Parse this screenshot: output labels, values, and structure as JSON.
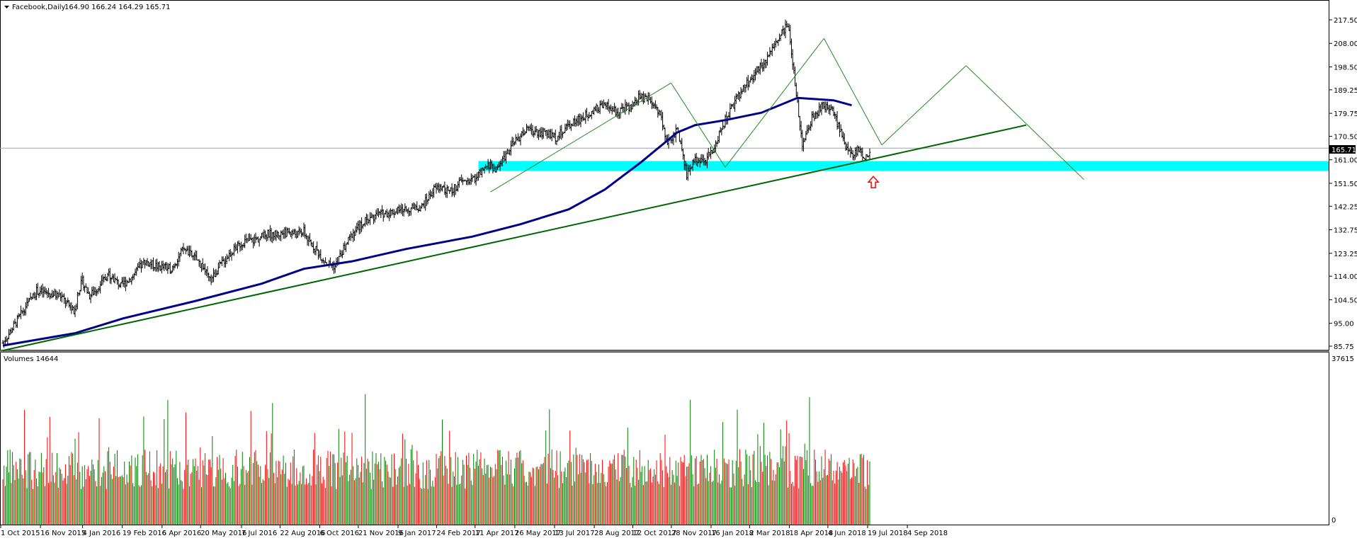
{
  "window": {
    "title": "Facebook,Daily",
    "ohlc": "164.90 166.24 164.29 165.71",
    "volume_label": "Volumes 14644"
  },
  "colors": {
    "price_bar": "#000000",
    "ma": "#00008b",
    "trendline": "#006400",
    "pattern": "#228b22",
    "support_zone": "#00ffff",
    "volume_up": "#008000",
    "volume_down": "#ff0000",
    "current_price_bg": "#000000",
    "arrow": "#ff0000"
  },
  "chart_data": {
    "type": "ohlc",
    "symbol": "Facebook",
    "timeframe": "Daily",
    "ylim": [
      85.75,
      221.0
    ],
    "y_ticks": [
      "217.50",
      "208.00",
      "198.50",
      "189.25",
      "179.75",
      "170.50",
      "161.00",
      "151.50",
      "142.25",
      "132.75",
      "123.25",
      "114.00",
      "104.50",
      "95.00",
      "85.75"
    ],
    "current_price": "165.71",
    "x_ticks": [
      "1 Oct 2015",
      "16 Nov 2015",
      "4 Jan 2016",
      "19 Feb 2016",
      "6 Apr 2016",
      "20 May 2016",
      "7 Jul 2016",
      "22 Aug 2016",
      "6 Oct 2016",
      "21 Nov 2016",
      "9 Jan 2017",
      "24 Feb 2017",
      "11 Apr 2017",
      "26 May 2017",
      "13 Jul 2017",
      "28 Aug 2017",
      "12 Oct 2017",
      "28 Nov 2017",
      "16 Jan 2018",
      "2 Mar 2018",
      "18 Apr 2018",
      "4 Jun 2018",
      "19 Jul 2018",
      "4 Sep 2018"
    ],
    "price_path": [
      [
        0,
        87
      ],
      [
        8,
        93
      ],
      [
        18,
        101
      ],
      [
        28,
        108
      ],
      [
        38,
        107
      ],
      [
        48,
        106
      ],
      [
        55,
        102
      ],
      [
        60,
        99
      ],
      [
        62,
        107
      ],
      [
        66,
        112
      ],
      [
        72,
        106
      ],
      [
        78,
        109
      ],
      [
        88,
        115
      ],
      [
        98,
        110
      ],
      [
        108,
        114
      ],
      [
        118,
        120
      ],
      [
        128,
        118
      ],
      [
        140,
        117
      ],
      [
        150,
        125
      ],
      [
        160,
        121
      ],
      [
        166,
        118
      ],
      [
        172,
        112
      ],
      [
        180,
        118
      ],
      [
        190,
        124
      ],
      [
        200,
        128
      ],
      [
        212,
        129
      ],
      [
        220,
        131
      ],
      [
        230,
        131
      ],
      [
        238,
        132
      ],
      [
        244,
        131
      ],
      [
        250,
        132
      ],
      [
        254,
        128
      ],
      [
        260,
        125
      ],
      [
        264,
        122
      ],
      [
        270,
        119
      ],
      [
        276,
        118
      ],
      [
        282,
        124
      ],
      [
        290,
        131
      ],
      [
        300,
        136
      ],
      [
        312,
        139
      ],
      [
        324,
        140
      ],
      [
        336,
        141
      ],
      [
        348,
        142
      ],
      [
        358,
        149
      ],
      [
        364,
        150
      ],
      [
        372,
        148
      ],
      [
        380,
        152
      ],
      [
        390,
        153
      ],
      [
        398,
        156
      ],
      [
        404,
        159
      ],
      [
        410,
        157
      ],
      [
        420,
        165
      ],
      [
        434,
        173
      ],
      [
        448,
        172
      ],
      [
        460,
        170
      ],
      [
        472,
        176
      ],
      [
        482,
        178
      ],
      [
        490,
        181
      ],
      [
        500,
        183
      ],
      [
        510,
        180
      ],
      [
        516,
        182
      ],
      [
        522,
        182
      ],
      [
        528,
        186
      ],
      [
        536,
        186
      ],
      [
        546,
        180
      ],
      [
        552,
        168
      ],
      [
        560,
        173
      ],
      [
        568,
        155
      ],
      [
        575,
        162
      ],
      [
        582,
        160
      ],
      [
        590,
        165
      ],
      [
        600,
        177
      ],
      [
        610,
        186
      ],
      [
        620,
        193
      ],
      [
        632,
        200
      ],
      [
        644,
        210
      ],
      [
        652,
        216
      ],
      [
        664,
        167
      ],
      [
        672,
        178
      ],
      [
        682,
        183
      ],
      [
        690,
        180
      ],
      [
        696,
        172
      ],
      [
        700,
        166
      ],
      [
        706,
        163
      ],
      [
        710,
        165
      ],
      [
        716,
        161
      ],
      [
        720,
        165
      ]
    ],
    "ma_path": [
      [
        0,
        86
      ],
      [
        60,
        91
      ],
      [
        100,
        97
      ],
      [
        160,
        104
      ],
      [
        215,
        111
      ],
      [
        250,
        117
      ],
      [
        290,
        120
      ],
      [
        335,
        125
      ],
      [
        390,
        130
      ],
      [
        430,
        135
      ],
      [
        470,
        141
      ],
      [
        500,
        149
      ],
      [
        530,
        160
      ],
      [
        560,
        172
      ],
      [
        575,
        175
      ],
      [
        600,
        177
      ],
      [
        630,
        180
      ],
      [
        660,
        186
      ],
      [
        690,
        185
      ],
      [
        705,
        183
      ]
    ],
    "trendline": [
      [
        0,
        84
      ],
      [
        850,
        175
      ]
    ],
    "support_zone": [
      156.5,
      160.5
    ],
    "zone_start_x": 395,
    "pattern_lines": [
      [
        [
          405,
          148
        ],
        [
          555,
          192
        ]
      ],
      [
        [
          555,
          192
        ],
        [
          600,
          158
        ]
      ],
      [
        [
          600,
          158
        ],
        [
          682,
          210
        ]
      ],
      [
        [
          682,
          210
        ],
        [
          730,
          167
        ]
      ],
      [
        [
          730,
          167
        ],
        [
          800,
          199
        ]
      ],
      [
        [
          800,
          199
        ],
        [
          898,
          153
        ]
      ]
    ],
    "arrow_at": [
      723,
      152
    ],
    "volume": {
      "max_label": "37615",
      "min_label": "0",
      "ymax": 37615
    }
  }
}
